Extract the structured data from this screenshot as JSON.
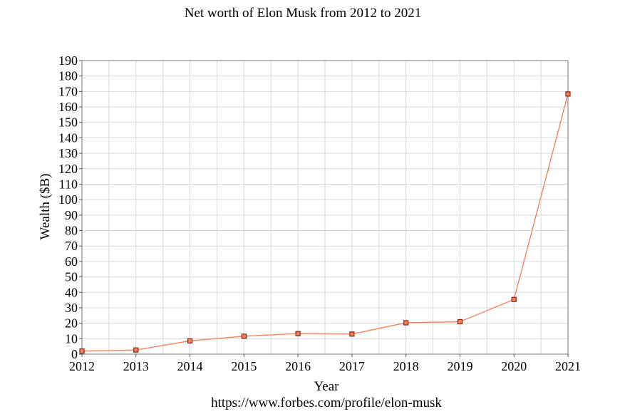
{
  "chart_data": {
    "type": "line",
    "title": "Net worth of Elon Musk from 2012 to 2021",
    "xlabel": "Year",
    "ylabel": "Wealth ($B)",
    "source": "https://www.forbes.com/profile/elon-musk",
    "x": [
      2012,
      2013,
      2014,
      2015,
      2016,
      2017,
      2018,
      2019,
      2020,
      2021
    ],
    "series": [
      {
        "values": [
          2,
          2.7,
          8.6,
          11.6,
          13.3,
          13,
          20.3,
          21,
          35.4,
          168.4
        ],
        "color": "#f4845a",
        "marker_color": "#8b1f0f"
      }
    ],
    "xlim": [
      2012,
      2021
    ],
    "ylim": [
      0,
      190
    ],
    "yticks": [
      0,
      10,
      20,
      30,
      40,
      50,
      60,
      70,
      80,
      90,
      100,
      110,
      120,
      130,
      140,
      150,
      160,
      170,
      180,
      190
    ],
    "xticks": [
      2012,
      2013,
      2014,
      2015,
      2016,
      2017,
      2018,
      2019,
      2020,
      2021
    ],
    "grid": true,
    "legend": "none"
  }
}
